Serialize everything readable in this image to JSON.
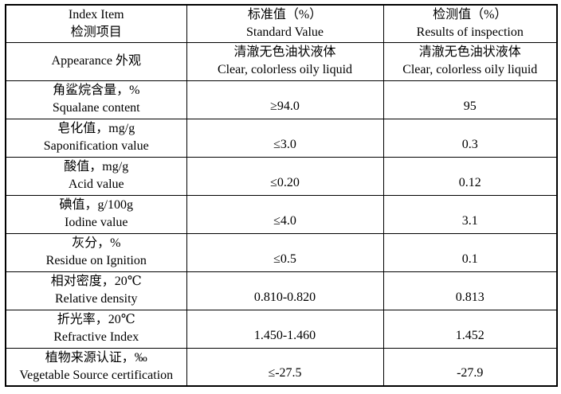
{
  "colors": {
    "background": "#ffffff",
    "border": "#000000",
    "text": "#000000"
  },
  "header": {
    "item": {
      "line1": "Index Item",
      "line2": "检测项目"
    },
    "standard": {
      "line1": "标准值（%）",
      "line2": "Standard Value"
    },
    "result": {
      "line1": "检测值（%）",
      "line2": "Results of inspection"
    }
  },
  "rows": [
    {
      "item1": "Appearance  外观",
      "item2": "",
      "std1": "清澈无色油状液体",
      "std2": "Clear, colorless oily liquid",
      "res1": "清澈无色油状液体",
      "res2": "Clear, colorless oily liquid"
    },
    {
      "item1": "角鲨烷含量，%",
      "item2": "Squalane content",
      "std1": "",
      "std2": "≥94.0",
      "res1": "",
      "res2": "95"
    },
    {
      "item1": "皂化值，mg/g",
      "item2": "Saponification value",
      "std1": "",
      "std2": "≤3.0",
      "res1": "",
      "res2": "0.3"
    },
    {
      "item1": "酸值，mg/g",
      "item2": "Acid value",
      "std1": "",
      "std2": "≤0.20",
      "res1": "",
      "res2": "0.12"
    },
    {
      "item1": "碘值，g/100g",
      "item2": "Iodine value",
      "std1": "",
      "std2": "≤4.0",
      "res1": "",
      "res2": "3.1"
    },
    {
      "item1": "灰分，%",
      "item2": "Residue on Ignition",
      "std1": "",
      "std2": "≤0.5",
      "res1": "",
      "res2": "0.1"
    },
    {
      "item1": "相对密度，20℃",
      "item2": "Relative density",
      "std1": "",
      "std2": "0.810-0.820",
      "res1": "",
      "res2": "0.813"
    },
    {
      "item1": "折光率，20℃",
      "item2": "Refractive Index",
      "std1": "",
      "std2": "1.450-1.460",
      "res1": "",
      "res2": "1.452"
    },
    {
      "item1": "植物来源认证，‰",
      "item2": "Vegetable Source certification",
      "std1": "",
      "std2": "≤-27.5",
      "res1": "",
      "res2": "-27.9"
    }
  ]
}
